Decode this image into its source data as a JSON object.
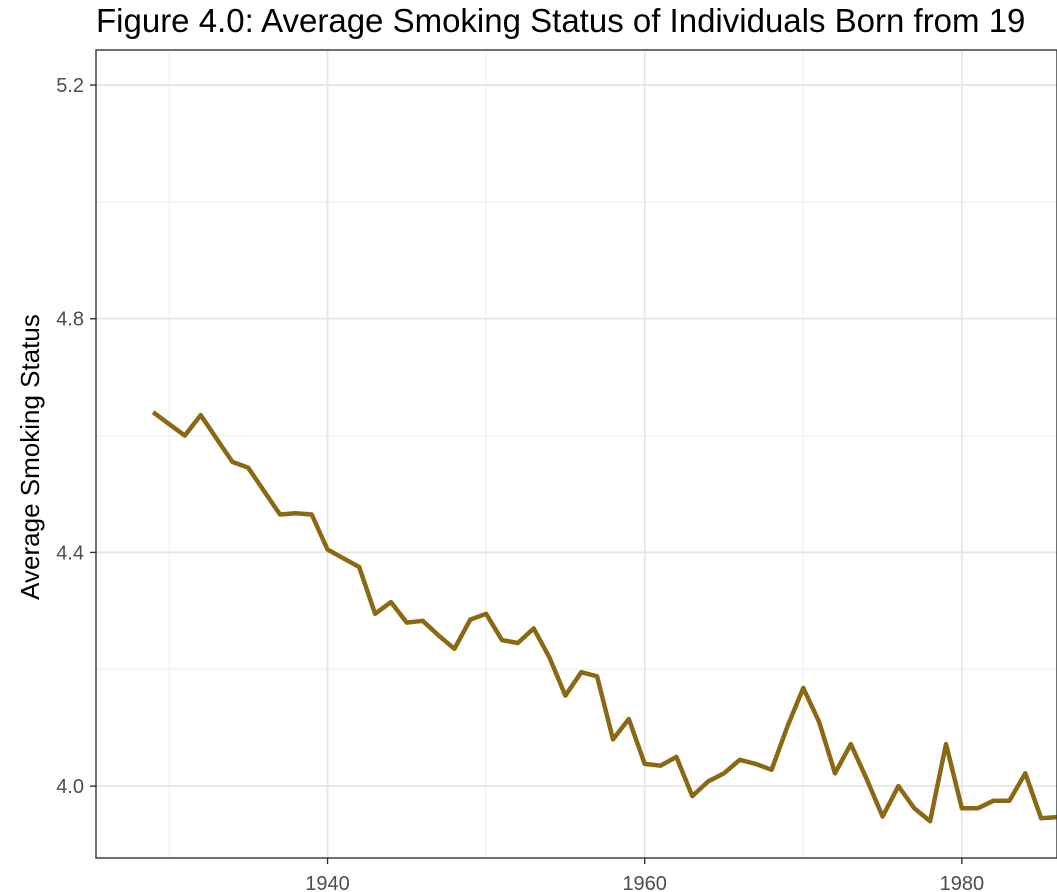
{
  "chart_data": {
    "type": "line",
    "title": "Figure 4.0: Average Smoking Status of Individuals Born from 19",
    "xlabel": "",
    "ylabel": "Average Smoking Status",
    "xlim": [
      1925.4,
      1986
    ],
    "ylim": [
      3.877,
      5.26
    ],
    "x_ticks": [
      1940,
      1960,
      1980
    ],
    "x_tick_labels": [
      "1940",
      "1960",
      "1980"
    ],
    "x_minor_ticks": [
      1930,
      1950,
      1970
    ],
    "y_ticks": [
      4.0,
      4.4,
      4.8,
      5.2
    ],
    "y_tick_labels": [
      "4.0",
      "4.4",
      "4.8",
      "5.2"
    ],
    "y_minor_ticks": [
      4.2,
      4.6,
      5.0
    ],
    "grid": true,
    "series": [
      {
        "color": "#8b6914",
        "x": [
          1929,
          1930,
          1931,
          1932,
          1933,
          1934,
          1935,
          1936,
          1937,
          1938,
          1939,
          1940,
          1941,
          1942,
          1943,
          1944,
          1945,
          1946,
          1947,
          1948,
          1949,
          1950,
          1951,
          1952,
          1953,
          1954,
          1955,
          1956,
          1957,
          1958,
          1959,
          1960,
          1961,
          1962,
          1963,
          1964,
          1965,
          1966,
          1967,
          1968,
          1969,
          1970,
          1971,
          1972,
          1973,
          1974,
          1975,
          1976,
          1977,
          1978,
          1979,
          1980,
          1981,
          1982,
          1983,
          1984,
          1985,
          1986
        ],
        "y": [
          4.64,
          4.62,
          4.6,
          4.635,
          4.595,
          4.555,
          4.545,
          4.505,
          4.465,
          4.467,
          4.465,
          4.405,
          4.39,
          4.375,
          4.295,
          4.315,
          4.28,
          4.283,
          4.258,
          4.235,
          4.285,
          4.295,
          4.25,
          4.245,
          4.27,
          4.22,
          4.155,
          4.195,
          4.188,
          4.08,
          4.115,
          4.038,
          4.035,
          4.05,
          3.983,
          4.008,
          4.022,
          4.045,
          4.038,
          4.028,
          4.102,
          4.168,
          4.11,
          4.022,
          4.072,
          4.012,
          3.948,
          4.0,
          3.962,
          3.94,
          4.072,
          3.962,
          3.962,
          3.975,
          3.975,
          4.022,
          3.945,
          3.947
        ]
      }
    ]
  }
}
